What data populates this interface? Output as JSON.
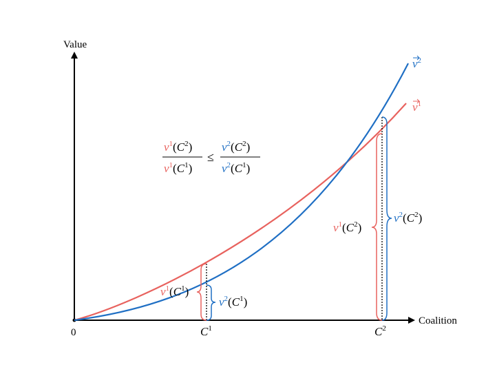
{
  "axes": {
    "y_label": "Value",
    "x_label": "Coalition",
    "origin_label": "0"
  },
  "ticks": [
    {
      "id": "c1",
      "base": "C",
      "sup": "1"
    },
    {
      "id": "c2",
      "base": "C",
      "sup": "2"
    }
  ],
  "curves": [
    {
      "id": "v1",
      "base": "v",
      "sup": "1",
      "color": "#e8625e"
    },
    {
      "id": "v2",
      "base": "v",
      "sup": "2",
      "color": "#1f6fc4"
    }
  ],
  "formula": {
    "num_left": {
      "fn": "v",
      "fn_sup": "1",
      "arg": "C",
      "arg_sup": "2"
    },
    "den_left": {
      "fn": "v",
      "fn_sup": "1",
      "arg": "C",
      "arg_sup": "1"
    },
    "relation": "≤",
    "num_right": {
      "fn": "v",
      "fn_sup": "2",
      "arg": "C",
      "arg_sup": "2"
    },
    "den_right": {
      "fn": "v",
      "fn_sup": "2",
      "arg": "C",
      "arg_sup": "1"
    }
  },
  "brace_labels": [
    {
      "id": "v1c1",
      "fn": "v",
      "fn_sup": "1",
      "arg": "C",
      "arg_sup": "1",
      "color": "#e8625e"
    },
    {
      "id": "v2c1",
      "fn": "v",
      "fn_sup": "2",
      "arg": "C",
      "arg_sup": "1",
      "color": "#1f6fc4"
    },
    {
      "id": "v1c2",
      "fn": "v",
      "fn_sup": "1",
      "arg": "C",
      "arg_sup": "2",
      "color": "#e8625e"
    },
    {
      "id": "v2c2",
      "fn": "v",
      "fn_sup": "2",
      "arg": "C",
      "arg_sup": "2",
      "color": "#1f6fc4"
    }
  ]
}
